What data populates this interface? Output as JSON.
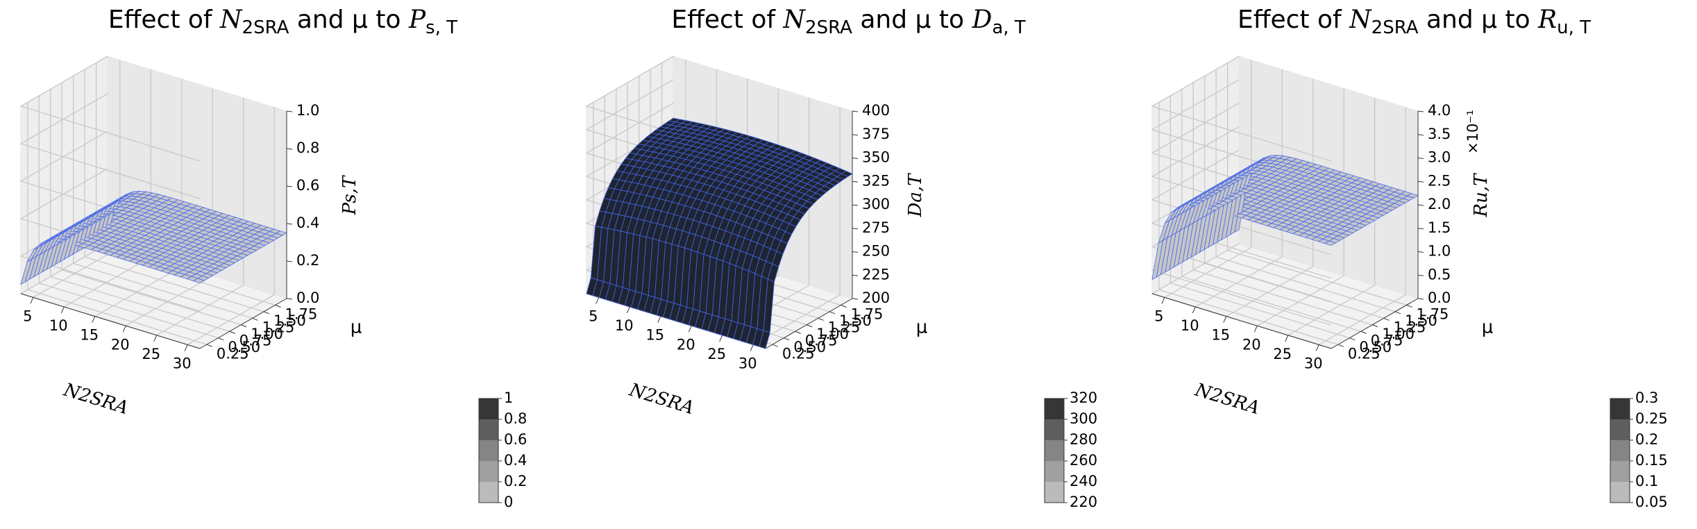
{
  "figure": {
    "panels": [
      {
        "title_prefix": "Effect of ",
        "title_var": "N",
        "title_var_sub": "2SRA",
        "title_mid": " and μ to ",
        "title_target": "P",
        "title_target_sub": "s, T"
      },
      {
        "title_prefix": "Effect of ",
        "title_var": "N",
        "title_var_sub": "2SRA",
        "title_mid": " and μ to ",
        "title_target": "D",
        "title_target_sub": "a, T"
      },
      {
        "title_prefix": "Effect of ",
        "title_var": "N",
        "title_var_sub": "2SRA",
        "title_mid": " and μ to ",
        "title_target": "R",
        "title_target_sub": "u, T"
      }
    ]
  },
  "chart_data": [
    {
      "type": "surface",
      "title": "Effect of N2SRA and μ to Ps,T",
      "xlabel": "N2SRA",
      "ylabel": "μ",
      "zlabel": "Ps,T",
      "x_ticks": [
        "5",
        "10",
        "15",
        "20",
        "25",
        "30"
      ],
      "y_ticks": [
        "0.25",
        "0.50",
        "0.75",
        "1.00",
        "1.25",
        "1.50",
        "1.75"
      ],
      "z_ticks": [
        "0.0",
        "0.2",
        "0.4",
        "0.6",
        "0.8",
        "1.0"
      ],
      "zlim": [
        0,
        1
      ],
      "colorbar_ticks": [
        "0",
        "0.2",
        "0.4",
        "0.6",
        "0.8",
        "1"
      ],
      "surface": {
        "N_range": [
          3,
          32
        ],
        "mu_range": [
          0.1,
          2.0
        ],
        "value_at_N_low": 0.05,
        "plateau_value": 0.35
      },
      "colors": {
        "face": "#c6c6c6",
        "edge": "#4466ee"
      }
    },
    {
      "type": "surface",
      "title": "Effect of N2SRA and μ to Da,T",
      "xlabel": "N2SRA",
      "ylabel": "μ",
      "zlabel": "Da,T",
      "x_ticks": [
        "5",
        "10",
        "15",
        "20",
        "25",
        "30"
      ],
      "y_ticks": [
        "0.25",
        "0.50",
        "0.75",
        "1.00",
        "1.25",
        "1.50",
        "1.75"
      ],
      "z_ticks": [
        "200",
        "225",
        "250",
        "275",
        "300",
        "325",
        "350",
        "375",
        "400"
      ],
      "zlim": [
        200,
        400
      ],
      "colorbar_ticks": [
        "220",
        "240",
        "260",
        "280",
        "300",
        "320"
      ],
      "surface": {
        "N_range": [
          3,
          32
        ],
        "mu_range": [
          0.1,
          2.0
        ],
        "value_at_mu_low": 235,
        "value_at_mu_high": 340
      },
      "colors": {
        "face": "#1e2430",
        "edge": "#4466ee"
      }
    },
    {
      "type": "surface",
      "title": "Effect of N2SRA and μ to Ru,T",
      "xlabel": "N2SRA",
      "ylabel": "μ",
      "zlabel": "Ru,T",
      "zscale_label": "×10⁻¹",
      "x_ticks": [
        "5",
        "10",
        "15",
        "20",
        "25",
        "30"
      ],
      "y_ticks": [
        "0.25",
        "0.50",
        "0.75",
        "1.00",
        "1.25",
        "1.50",
        "1.75"
      ],
      "z_ticks": [
        "0.0",
        "0.5",
        "1.0",
        "1.5",
        "2.0",
        "2.5",
        "3.0",
        "3.5",
        "4.0"
      ],
      "zlim": [
        0,
        4
      ],
      "colorbar_ticks": [
        "0.05",
        "0.1",
        "0.15",
        "0.2",
        "0.25",
        "0.3"
      ],
      "surface": {
        "N_range": [
          3,
          32
        ],
        "mu_range": [
          0.1,
          2.0
        ],
        "value_at_N_low": 0.3,
        "plateau_value": 2.2
      },
      "colors": {
        "face": "#c6c6c6",
        "edge": "#4466ee"
      }
    }
  ]
}
